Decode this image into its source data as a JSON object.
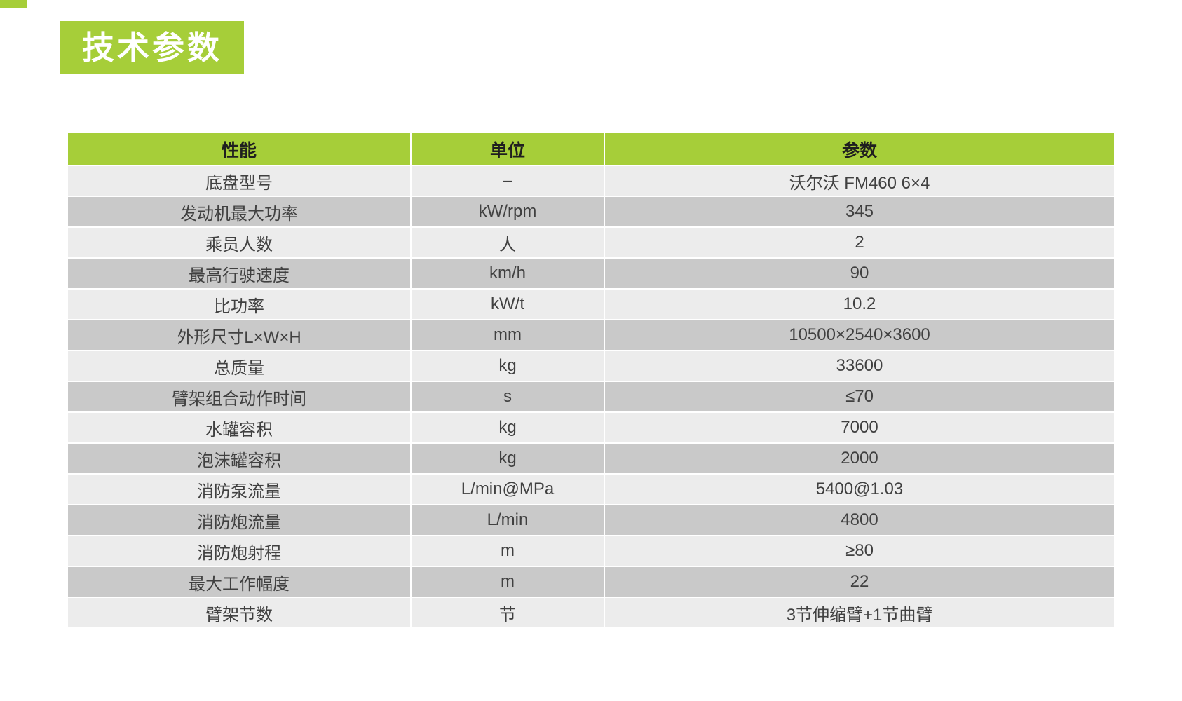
{
  "page": {
    "title_badge": "技术参数"
  },
  "colors": {
    "accent_green": "#a6ce39",
    "row_light": "#ececec",
    "row_dark": "#c9c9c9",
    "header_text": "#1f1f1f",
    "body_text": "#404040"
  },
  "table": {
    "headers": [
      "性能",
      "单位",
      "参数"
    ],
    "rows": [
      {
        "property": "底盘型号",
        "unit": "–",
        "value": "沃尔沃 FM460 6×4"
      },
      {
        "property": "发动机最大功率",
        "unit": "kW/rpm",
        "value": "345"
      },
      {
        "property": "乘员人数",
        "unit": "人",
        "value": "2"
      },
      {
        "property": "最高行驶速度",
        "unit": "km/h",
        "value": "90"
      },
      {
        "property": "比功率",
        "unit": "kW/t",
        "value": "10.2"
      },
      {
        "property": "外形尺寸L×W×H",
        "unit": "mm",
        "value": "10500×2540×3600"
      },
      {
        "property": "总质量",
        "unit": "kg",
        "value": "33600"
      },
      {
        "property": "臂架组合动作时间",
        "unit": "s",
        "value": "≤70"
      },
      {
        "property": "水罐容积",
        "unit": "kg",
        "value": "7000"
      },
      {
        "property": "泡沫罐容积",
        "unit": "kg",
        "value": "2000"
      },
      {
        "property": "消防泵流量",
        "unit": "L/min@MPa",
        "value": "5400@1.03"
      },
      {
        "property": "消防炮流量",
        "unit": "L/min",
        "value": "4800"
      },
      {
        "property": "消防炮射程",
        "unit": "m",
        "value": "≥80"
      },
      {
        "property": "最大工作幅度",
        "unit": "m",
        "value": "22"
      },
      {
        "property": "臂架节数",
        "unit": "节",
        "value": "3节伸缩臂+1节曲臂"
      }
    ]
  }
}
